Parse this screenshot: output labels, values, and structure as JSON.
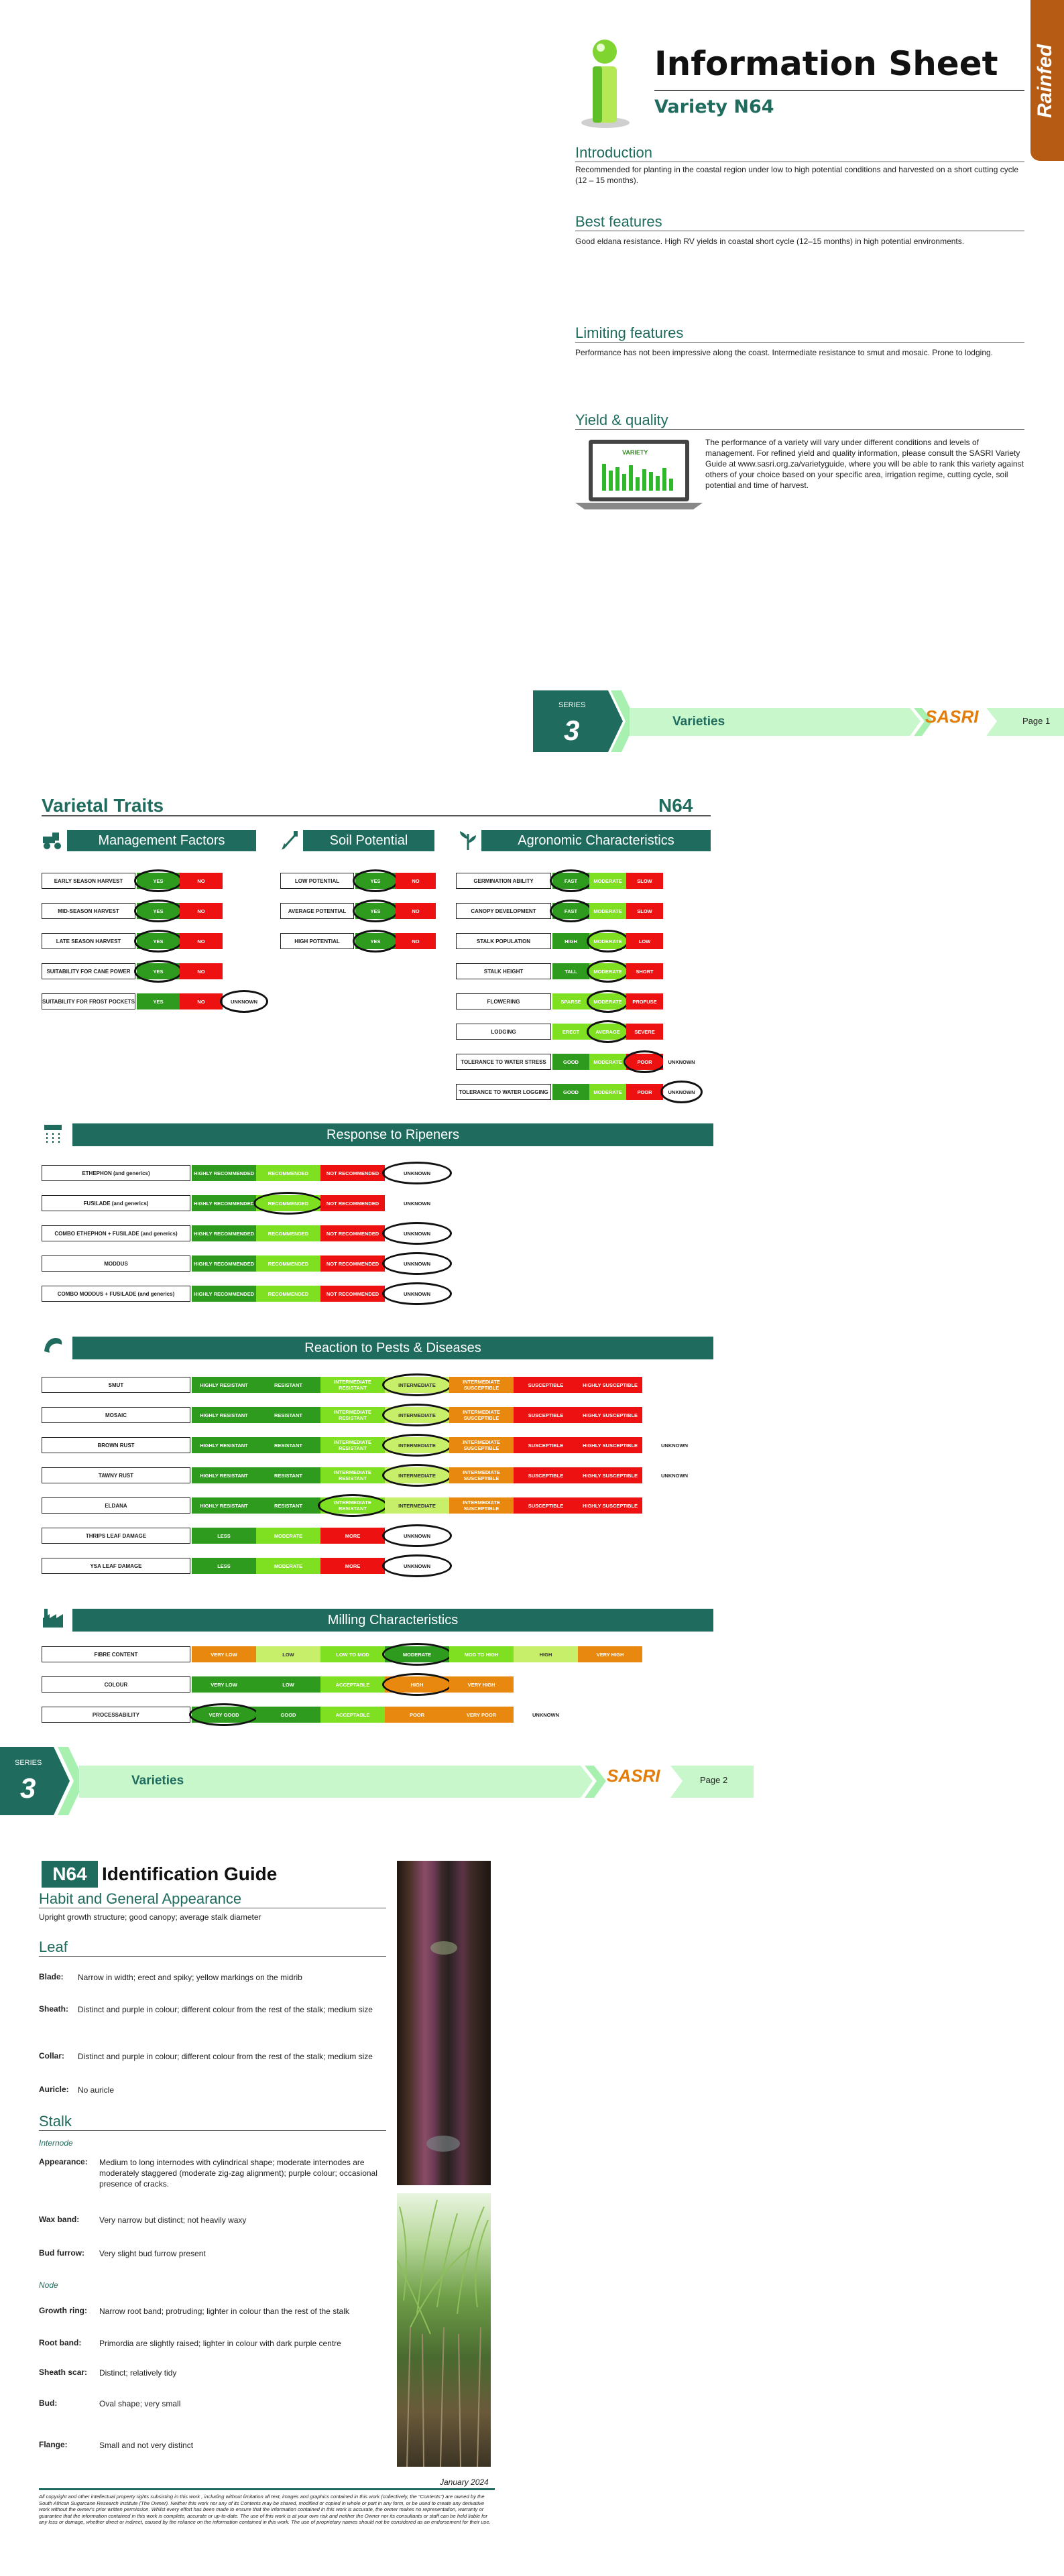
{
  "header": {
    "title": "Information Sheet",
    "variety": "Variety N64",
    "badge": "Rainfed"
  },
  "intro": {
    "heading": "Introduction",
    "text": "Recommended for planting in the coastal region under low to high potential conditions and harvested on a short cutting cycle (12 – 15 months)."
  },
  "best": {
    "heading": "Best features",
    "text": "Good eldana resistance. High RV yields in coastal short cycle (12–15 months) in high potential environments."
  },
  "limiting": {
    "heading": "Limiting features",
    "text": "Performance has not been impressive along the coast.  Intermediate resistance to smut and mosaic.  Prone to lodging."
  },
  "yield": {
    "heading": "Yield & quality",
    "text": "The performance of a variety will vary under different conditions and levels of management. For refined yield and quality information, please consult the SASRI Variety Guide at www.sasri.org.za/varietyguide, where you will be able to rank this variety against others of your choice based on your specific area, irrigation regime, cutting cycle, soil potential and time of harvest.",
    "laptop_label": "VARIETY"
  },
  "footer1": {
    "series": "SERIES",
    "num": "3",
    "label": "Varieties",
    "logo": "SASRI",
    "page": "Page 1"
  },
  "footer2": {
    "series": "SERIES",
    "num": "3",
    "label": "Varieties",
    "logo": "SASRI",
    "page": "Page 2"
  },
  "traits": {
    "title": "Varietal Traits",
    "code": "N64",
    "mgmt": {
      "title": "Management Factors",
      "rows": [
        {
          "label": "EARLY SEASON HARVEST",
          "opts": [
            "YES",
            "NO"
          ]
        },
        {
          "label": "MID-SEASON HARVEST",
          "opts": [
            "YES",
            "NO"
          ]
        },
        {
          "label": "LATE SEASON HARVEST",
          "opts": [
            "YES",
            "NO"
          ]
        },
        {
          "label": "SUITABILITY FOR CANE POWER",
          "opts": [
            "YES",
            "NO"
          ]
        },
        {
          "label": "SUITABILITY FOR FROST POCKETS",
          "opts": [
            "YES",
            "NO",
            "UNKNOWN"
          ]
        }
      ]
    },
    "soil": {
      "title": "Soil Potential",
      "rows": [
        {
          "label": "LOW POTENTIAL",
          "opts": [
            "YES",
            "NO"
          ]
        },
        {
          "label": "AVERAGE POTENTIAL",
          "opts": [
            "YES",
            "NO"
          ]
        },
        {
          "label": "HIGH POTENTIAL",
          "opts": [
            "YES",
            "NO"
          ]
        }
      ]
    },
    "agro": {
      "title": "Agronomic Characteristics",
      "rows": [
        {
          "label": "GERMINATION ABILITY",
          "opts": [
            "FAST",
            "MODERATE",
            "SLOW"
          ]
        },
        {
          "label": "CANOPY DEVELOPMENT",
          "opts": [
            "FAST",
            "MODERATE",
            "SLOW"
          ]
        },
        {
          "label": "STALK POPULATION",
          "opts": [
            "HIGH",
            "MODERATE",
            "LOW"
          ]
        },
        {
          "label": "STALK HEIGHT",
          "opts": [
            "TALL",
            "MODERATE",
            "SHORT"
          ]
        },
        {
          "label": "FLOWERING",
          "opts": [
            "SPARSE",
            "MODERATE",
            "PROFUSE"
          ]
        },
        {
          "label": "LODGING",
          "opts": [
            "ERECT",
            "AVERAGE",
            "SEVERE"
          ]
        },
        {
          "label": "TOLERANCE TO WATER STRESS",
          "opts": [
            "GOOD",
            "MODERATE",
            "POOR",
            "UNKNOWN"
          ]
        },
        {
          "label": "TOLERANCE TO WATER LOGGING",
          "opts": [
            "GOOD",
            "MODERATE",
            "POOR",
            "UNKNOWN"
          ]
        }
      ]
    },
    "ripeners": {
      "title": "Response to Ripeners",
      "rows": [
        {
          "label": "ETHEPHON (and generics)",
          "opts": [
            "HIGHLY RECOMMENDED",
            "RECOMMENDED",
            "NOT RECOMMENDED",
            "UNKNOWN"
          ]
        },
        {
          "label": "FUSILADE (and generics)",
          "opts": [
            "HIGHLY RECOMMENDED",
            "RECOMMENDED",
            "NOT RECOMMENDED",
            "UNKNOWN"
          ]
        },
        {
          "label": "COMBO ETHEPHON + FUSILADE (and generics)",
          "opts": [
            "HIGHLY RECOMMENDED",
            "RECOMMENDED",
            "NOT RECOMMENDED",
            "UNKNOWN"
          ]
        },
        {
          "label": "MODDUS",
          "opts": [
            "HIGHLY RECOMMENDED",
            "RECOMMENDED",
            "NOT RECOMMENDED",
            "UNKNOWN"
          ]
        },
        {
          "label": "COMBO MODDUS + FUSILADE (and generics)",
          "opts": [
            "HIGHLY RECOMMENDED",
            "RECOMMENDED",
            "NOT RECOMMENDED",
            "UNKNOWN"
          ]
        }
      ]
    },
    "pests": {
      "title": "Reaction to Pests & Diseases",
      "rows": [
        {
          "label": "SMUT",
          "opts": [
            "HIGHLY RESISTANT",
            "RESISTANT",
            "INTERMEDIATE RESISTANT",
            "INTERMEDIATE",
            "INTERMEDIATE SUSCEPTIBLE",
            "SUSCEPTIBLE",
            "HIGHLY SUSCEPTIBLE"
          ]
        },
        {
          "label": "MOSAIC",
          "opts": [
            "HIGHLY RESISTANT",
            "RESISTANT",
            "INTERMEDIATE RESISTANT",
            "INTERMEDIATE",
            "INTERMEDIATE SUSCEPTIBLE",
            "SUSCEPTIBLE",
            "HIGHLY SUSCEPTIBLE"
          ]
        },
        {
          "label": "BROWN RUST",
          "opts": [
            "HIGHLY RESISTANT",
            "RESISTANT",
            "INTERMEDIATE RESISTANT",
            "INTERMEDIATE",
            "INTERMEDIATE SUSCEPTIBLE",
            "SUSCEPTIBLE",
            "HIGHLY SUSCEPTIBLE",
            "UNKNOWN"
          ]
        },
        {
          "label": "TAWNY RUST",
          "opts": [
            "HIGHLY RESISTANT",
            "RESISTANT",
            "INTERMEDIATE RESISTANT",
            "INTERMEDIATE",
            "INTERMEDIATE SUSCEPTIBLE",
            "SUSCEPTIBLE",
            "HIGHLY SUSCEPTIBLE",
            "UNKNOWN"
          ]
        },
        {
          "label": "ELDANA",
          "opts": [
            "HIGHLY RESISTANT",
            "RESISTANT",
            "INTERMEDIATE RESISTANT",
            "INTERMEDIATE",
            "INTERMEDIATE SUSCEPTIBLE",
            "SUSCEPTIBLE",
            "HIGHLY SUSCEPTIBLE"
          ]
        },
        {
          "label": "THRIPS LEAF DAMAGE",
          "opts": [
            "LESS",
            "MODERATE",
            "MORE",
            "UNKNOWN"
          ]
        },
        {
          "label": "YSA LEAF DAMAGE",
          "opts": [
            "LESS",
            "MODERATE",
            "MORE",
            "UNKNOWN"
          ]
        }
      ]
    },
    "milling": {
      "title": "Milling Characteristics",
      "rows": [
        {
          "label": "FIBRE CONTENT",
          "opts": [
            "VERY LOW",
            "LOW",
            "LOW TO MOD",
            "MODERATE",
            "MOD TO HIGH",
            "HIGH",
            "VERY HIGH"
          ]
        },
        {
          "label": "COLOUR",
          "opts": [
            "VERY LOW",
            "LOW",
            "ACCEPTABLE",
            "HIGH",
            "VERY HIGH"
          ]
        },
        {
          "label": "PROCESSABILITY",
          "opts": [
            "VERY GOOD",
            "GOOD",
            "ACCEPTABLE",
            "POOR",
            "VERY POOR",
            "UNKNOWN"
          ]
        }
      ]
    }
  },
  "guide": {
    "code": "N64",
    "title": "Identification Guide",
    "habit": {
      "heading": "Habit and General Appearance",
      "text": "Upright growth structure; good canopy; average stalk diameter"
    },
    "leaf": {
      "heading": "Leaf",
      "items": [
        {
          "k": "Blade:",
          "v": "Narrow in width; erect and spiky; yellow markings on the midrib"
        },
        {
          "k": "Sheath:",
          "v": "Distinct and purple in colour; different colour from the rest of the stalk; medium size"
        },
        {
          "k": "Collar:",
          "v": "Distinct and purple in colour; different colour from the rest of the stalk; medium size"
        },
        {
          "k": "Auricle:",
          "v": "No auricle"
        }
      ]
    },
    "stalk": {
      "heading": "Stalk",
      "internode": "Internode",
      "node": "Node",
      "items": [
        {
          "k": "Appearance:",
          "v": "Medium to long internodes with cylindrical shape; moderate internodes are moderately staggered (moderate zig-zag alignment); purple colour; occasional presence of cracks."
        },
        {
          "k": "Wax band:",
          "v": "Very narrow but distinct; not heavily waxy"
        },
        {
          "k": "Bud furrow:",
          "v": "Very slight bud furrow present"
        },
        {
          "k": "Growth ring:",
          "v": "Narrow root band; protruding; lighter in colour than the rest of the stalk"
        },
        {
          "k": "Root band:",
          "v": "Primordia are slightly raised; lighter in colour with dark purple centre"
        },
        {
          "k": "Sheath scar:",
          "v": "Distinct; relatively tidy"
        },
        {
          "k": "Bud:",
          "v": "Oval shape; very small"
        },
        {
          "k": "Flange:",
          "v": "Small and not very distinct"
        }
      ]
    },
    "date": "January 2024",
    "copyright": "All copyright and other intellectual property rights subsisting in this work , including without limitation all text, images and graphics contained in this work (collectively, the \"Contents\") are owned by the South African Sugarcane Research Institute (The Owner). Neither this work nor any of its Contents may be shared, modified or copied in whole or part in any form, or be used to create any derivative work without the owner's prior written permission. Whilst every effort has been made to ensure that the information contained in this work is accurate, the owner makes no representation, warranty or guarantee that the information contained in this work is complete, accurate or up-to-date. The use of this work is at your own risk and neither the Owner nor its consultants or staff can be held liable for any loss or damage, whether direct or indirect, caused by the reliance on the information contained in this work. The use of proprietary names should not be considered as an endorsement for their use."
  }
}
